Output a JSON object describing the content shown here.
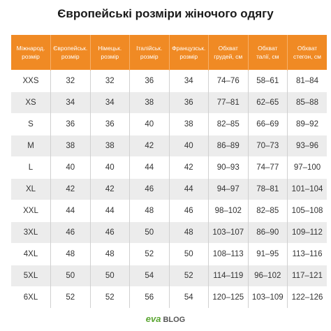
{
  "header": {
    "title": "Європейські розміри жіночого одягу"
  },
  "table": {
    "columns": [
      [
        "Міжнарод.",
        "розмір"
      ],
      [
        "Європейськ.",
        "розмір"
      ],
      [
        "Німецьк.",
        "розмір"
      ],
      [
        "Італійськ.",
        "розмір"
      ],
      [
        "Французськ.",
        "розмір"
      ],
      [
        "Обхват",
        "грудей, см"
      ],
      [
        "Обхват",
        "талії, см"
      ],
      [
        "Обхват",
        "стегон, см"
      ]
    ],
    "rows": [
      [
        "XXS",
        32,
        32,
        36,
        34,
        "74–76",
        "58–61",
        "81–84"
      ],
      [
        "XS",
        34,
        34,
        38,
        36,
        "77–81",
        "62–65",
        "85–88"
      ],
      [
        "S",
        36,
        36,
        40,
        38,
        "82–85",
        "66–69",
        "89–92"
      ],
      [
        "M",
        38,
        38,
        42,
        40,
        "86–89",
        "70–73",
        "93–96"
      ],
      [
        "L",
        40,
        40,
        44,
        42,
        "90–93",
        "74–77",
        "97–100"
      ],
      [
        "XL",
        42,
        42,
        46,
        44,
        "94–97",
        "78–81",
        "101–104"
      ],
      [
        "XXL",
        44,
        44,
        48,
        46,
        "98–102",
        "82–85",
        "105–108"
      ],
      [
        "3XL",
        46,
        46,
        50,
        48,
        "103–107",
        "86–90",
        "109–112"
      ],
      [
        "4XL",
        48,
        48,
        52,
        50,
        "108–113",
        "91–95",
        "113–116"
      ],
      [
        "5XL",
        50,
        50,
        54,
        52,
        "114–119",
        "96–102",
        "117–121"
      ],
      [
        "6XL",
        52,
        52,
        56,
        54,
        "120–125",
        "103–109",
        "122–126"
      ]
    ]
  },
  "footer": {
    "brand": "eva",
    "section": "BLOG"
  }
}
